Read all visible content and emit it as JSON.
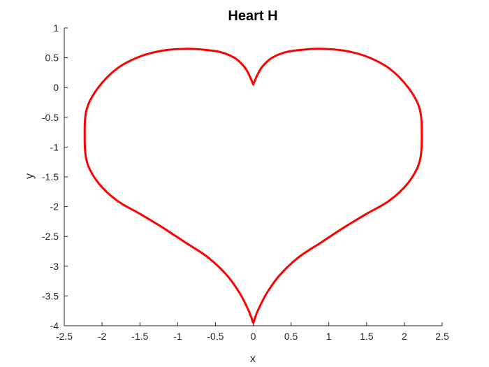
{
  "chart_data": {
    "type": "line",
    "title": "Heart H",
    "xlabel": "x",
    "ylabel": "y",
    "xlim": [
      -2.5,
      2.5
    ],
    "ylim": [
      -4,
      1
    ],
    "xticks": [
      -2.5,
      -2,
      -1.5,
      -1,
      -0.5,
      0,
      0.5,
      1,
      1.5,
      2,
      2.5
    ],
    "yticks": [
      -4,
      -3.5,
      -3,
      -2.5,
      -2,
      -1.5,
      -1,
      -0.5,
      0,
      0.5,
      1
    ],
    "xtick_labels": [
      "-2.5",
      "-2",
      "-1.5",
      "-1",
      "-0.5",
      "0",
      "0.5",
      "1",
      "1.5",
      "2",
      "2.5"
    ],
    "ytick_labels": [
      "-4",
      "-3.5",
      "-3",
      "-2.5",
      "-2",
      "-1.5",
      "-1",
      "-0.5",
      "0",
      "0.5",
      "1"
    ],
    "grid": false,
    "series": [
      {
        "color": "#ff0000",
        "x": [
          0,
          0.05,
          0.12,
          0.25,
          0.45,
          0.7,
          0.9,
          1.2,
          1.5,
          1.8,
          2.05,
          2.2,
          2.23,
          2.2,
          2.05,
          1.8,
          1.5,
          1.2,
          0.9,
          0.6,
          0.35,
          0.18,
          0.07,
          0.02,
          0,
          -0.02,
          -0.07,
          -0.18,
          -0.35,
          -0.6,
          -0.9,
          -1.2,
          -1.5,
          -1.8,
          -2.05,
          -2.2,
          -2.23,
          -2.2,
          -2.05,
          -1.8,
          -1.5,
          -1.2,
          -0.9,
          -0.7,
          -0.45,
          -0.25,
          -0.12,
          -0.05,
          0
        ],
        "y": [
          0.05,
          0.2,
          0.35,
          0.5,
          0.6,
          0.64,
          0.65,
          0.62,
          0.52,
          0.32,
          0.0,
          -0.35,
          -0.78,
          -1.25,
          -1.6,
          -1.9,
          -2.12,
          -2.35,
          -2.6,
          -2.85,
          -3.15,
          -3.45,
          -3.72,
          -3.88,
          -3.95,
          -3.88,
          -3.72,
          -3.45,
          -3.15,
          -2.85,
          -2.6,
          -2.35,
          -2.12,
          -1.9,
          -1.6,
          -1.25,
          -0.78,
          -0.35,
          0.0,
          0.32,
          0.52,
          0.62,
          0.65,
          0.64,
          0.6,
          0.5,
          0.35,
          0.2,
          0.05
        ]
      }
    ]
  }
}
